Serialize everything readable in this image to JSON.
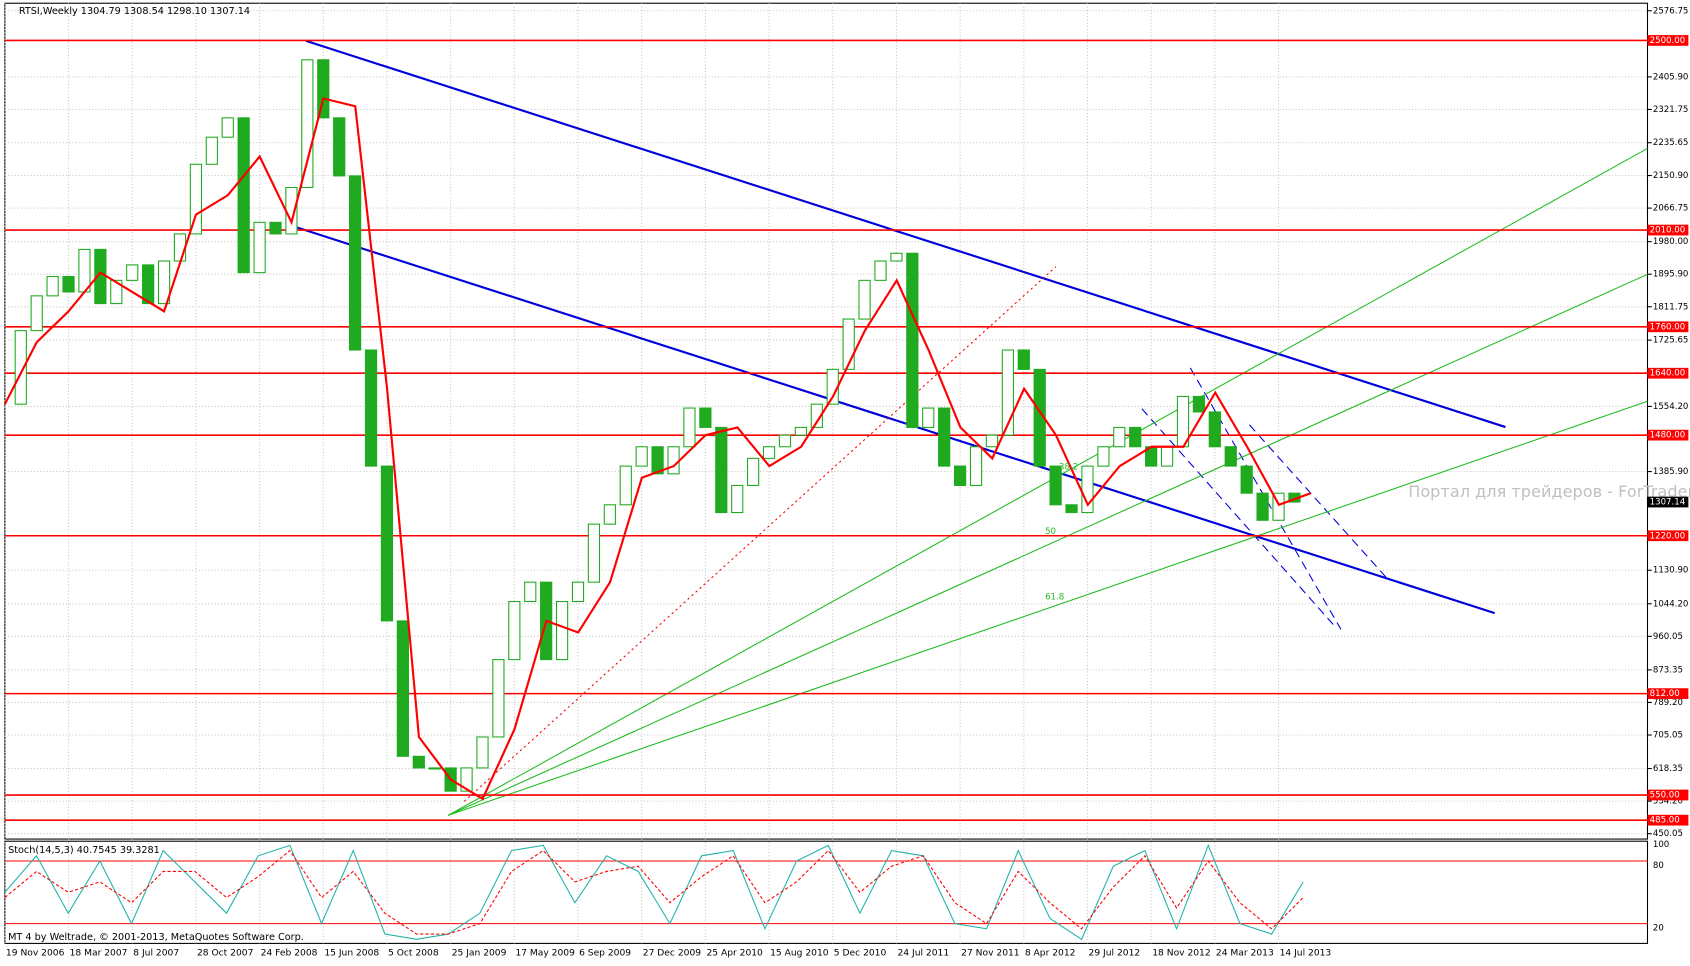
{
  "chart_data": [
    {
      "type": "candlestick",
      "title": "RTSI,Weekly  1304.79 1308.54 1298.10 1307.14",
      "categories": [
        "19 Nov 2006",
        "18 Mar 2007",
        "8 Jul 2007",
        "28 Oct 2007",
        "24 Feb 2008",
        "15 Jun 2008",
        "5 Oct 2008",
        "25 Jan 2009",
        "17 May 2009",
        "6 Sep 2009",
        "27 Dec 2009",
        "25 Apr 2010",
        "15 Aug 2010",
        "5 Dec 2010",
        "24 Jul 2011",
        "27 Nov 2011",
        "8 Apr 2012",
        "29 Jul 2012",
        "18 Nov 2012",
        "24 Mar 2013",
        "14 Jul 2013"
      ],
      "ylim": [
        450.05,
        2576.75
      ],
      "yticks": [
        2576.75,
        {
          "value": 2405.9,
          "label": "2405.90"
        },
        2321.75,
        2235.65,
        {
          "value": 2150.9,
          "label": "2150.90"
        },
        2066.75,
        {
          "value": 1980,
          "label": "1980.00"
        },
        {
          "value": 1895.9,
          "label": "1895.90"
        },
        1811.75,
        1725.65,
        {
          "value": 1554.2,
          "label": "1554.20"
        },
        {
          "value": 1385.9,
          "label": "1385.90"
        },
        {
          "value": 1130.9,
          "label": "1130.90"
        },
        {
          "value": 1044.2,
          "label": "1044.20"
        },
        960.05,
        873.35,
        {
          "value": 789.2,
          "label": "789.20"
        },
        705.05,
        618.35,
        {
          "value": 534.2,
          "label": "534.20"
        },
        450.05
      ],
      "levels": [
        {
          "value": 2500,
          "label": "2500.00"
        },
        {
          "value": 2010,
          "label": "2010.00"
        },
        {
          "value": 1760,
          "label": "1760.00"
        },
        {
          "value": 1640,
          "label": "1640.00"
        },
        {
          "value": 1480,
          "label": "1480.00"
        },
        {
          "value": 1220,
          "label": "1220.00"
        },
        {
          "value": 812,
          "label": "812.00"
        },
        {
          "value": 550,
          "label": "550.00"
        },
        {
          "value": 485,
          "label": "485.00"
        }
      ],
      "level_color": "#ff0000",
      "last_price": 1307.14,
      "closes": [
        1560,
        1750,
        1840,
        1890,
        1850,
        1960,
        1820,
        1880,
        1920,
        1820,
        1930,
        2000,
        2180,
        2250,
        2300,
        1900,
        2030,
        2000,
        2120,
        2450,
        2300,
        2150,
        1700,
        1400,
        1000,
        650,
        620,
        620,
        560,
        620,
        700,
        900,
        1050,
        1100,
        900,
        1050,
        1100,
        1250,
        1300,
        1400,
        1450,
        1380,
        1450,
        1550,
        1500,
        1280,
        1350,
        1420,
        1450,
        1480,
        1500,
        1560,
        1650,
        1780,
        1880,
        1930,
        1950,
        1500,
        1550,
        1400,
        1350,
        1450,
        1480,
        1700,
        1650,
        1400,
        1300,
        1280,
        1400,
        1450,
        1500,
        1450,
        1400,
        1450,
        1580,
        1540,
        1450,
        1400,
        1330,
        1260,
        1330,
        1307.14
      ],
      "candle_color": "#1faa1f",
      "ma": {
        "color": "#ff0000",
        "values": [
          1560,
          1720,
          1800,
          1900,
          1850,
          1800,
          2050,
          2100,
          2200,
          2030,
          2350,
          2330,
          1600,
          700,
          590,
          540,
          720,
          1000,
          970,
          1100,
          1370,
          1400,
          1480,
          1500,
          1400,
          1450,
          1580,
          1750,
          1880,
          1700,
          1500,
          1420,
          1600,
          1480,
          1300,
          1400,
          1450,
          1450,
          1590,
          1450,
          1300,
          1330
        ]
      },
      "watermark": "Портал для трейдеров - ForTrader.ru",
      "fib_labels": [
        "38.2",
        "50",
        "61.8"
      ],
      "grid": true
    },
    {
      "type": "stochastic",
      "title": "Stoch(14,5,3) 40.7545 39.3281",
      "ylim": [
        0,
        100
      ],
      "yticks": [
        20,
        80,
        100
      ],
      "main": {
        "color": "#20b2aa",
        "values": [
          50,
          85,
          30,
          80,
          20,
          90,
          60,
          30,
          85,
          95,
          20,
          90,
          10,
          5,
          10,
          30,
          90,
          95,
          40,
          85,
          70,
          20,
          85,
          90,
          15,
          80,
          95,
          30,
          90,
          85,
          20,
          15,
          90,
          25,
          5,
          75,
          90,
          15,
          95,
          20,
          10,
          60
        ]
      },
      "signal": {
        "color": "#ff0000",
        "values": [
          45,
          70,
          50,
          60,
          40,
          70,
          70,
          45,
          65,
          90,
          45,
          70,
          30,
          10,
          10,
          20,
          70,
          90,
          60,
          70,
          75,
          40,
          65,
          85,
          40,
          60,
          90,
          50,
          75,
          85,
          40,
          20,
          70,
          40,
          15,
          55,
          85,
          35,
          80,
          40,
          15,
          45
        ]
      }
    }
  ],
  "footer": "MT 4 by Weltrade, © 2001-2013, MetaQuotes Software Corp."
}
